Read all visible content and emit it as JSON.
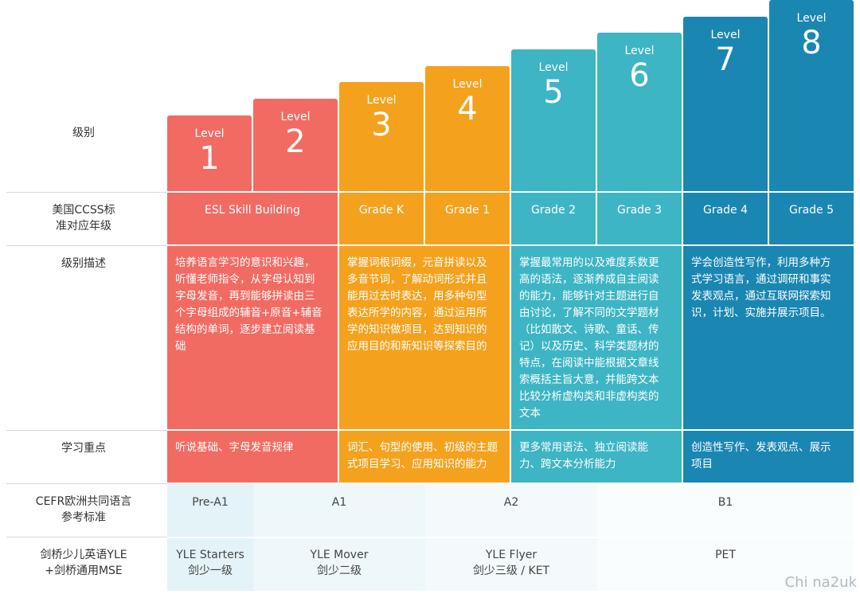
{
  "row_labels": {
    "level": "级别",
    "ccss": [
      "美国CCSS标",
      "准对应年级"
    ],
    "desc": "级别描述",
    "focus": "学习重点",
    "cefr": [
      "CEFR欧洲共同语言",
      "参考标准"
    ],
    "yle": [
      "剑桥少儿英语YLE",
      "+剑桥通用MSE"
    ]
  },
  "levels": [
    {
      "word": "Level",
      "num": "1"
    },
    {
      "word": "Level",
      "num": "2"
    },
    {
      "word": "Level",
      "num": "3"
    },
    {
      "word": "Level",
      "num": "4"
    },
    {
      "word": "Level",
      "num": "5"
    },
    {
      "word": "Level",
      "num": "6"
    },
    {
      "word": "Level",
      "num": "7"
    },
    {
      "word": "Level",
      "num": "8"
    }
  ],
  "grades": [
    "ESL Skill Building",
    "Grade K",
    "Grade 1",
    "Grade 2",
    "Grade 3",
    "Grade 4",
    "Grade 5"
  ],
  "descriptions": [
    [
      "培养语言学习的意识和兴趣，",
      "听懂老师指令，从字母认知到",
      "字母发音，再到能够拼读由三",
      "个字母组成的辅音+原音+辅音",
      "结构的单词，逐步建立阅读基",
      "础"
    ],
    [
      "掌握词根词缀，元音拼读以及",
      "多音节词，了解动词形式并且",
      "能用过去时表达，用多种句型",
      "表达所学的内容，通过运用所",
      "学的知识做项目，达到知识的",
      "应用目的和新知识等探索目的"
    ],
    [
      "掌握最常用的以及难度系数更",
      "高的语法，逐渐养成自主阅读",
      "的能力，能够针对主题进行自",
      "由讨论，了解不同的文学题材",
      "（比如散文、诗歌、童话、传",
      "记）以及历史、科学类题材的",
      "特点，在阅读中能根据文章线",
      "索概括主旨大意，并能跨文本",
      "比较分析虚构类和非虚构类的",
      "文本"
    ],
    [
      "学会创造性写作，利用多种方",
      "式学习语言，通过调研和事实",
      "发表观点，通过互联网探索知",
      "识，计划、实施并展示项目。"
    ]
  ],
  "focus": [
    [
      "听说基础、字母发音规律"
    ],
    [
      "词汇、句型的使用、初级的主题",
      "式项目学习、应用知识的能力"
    ],
    [
      "更多常用语法、独立阅读能",
      "力、跨文本分析能力"
    ],
    [
      "创造性写作、发表观点、展示",
      "项目"
    ]
  ],
  "cefr": [
    "Pre-A1",
    "A1",
    "A2",
    "B1"
  ],
  "yle": [
    [
      "YLE Starters",
      "剑少一级"
    ],
    [
      "YLE Mover",
      "剑少二级"
    ],
    [
      "YLE Flyer",
      "剑少三级  /  KET"
    ],
    [
      "PET"
    ]
  ],
  "watermark": "Chi na2uk",
  "colors": {
    "red": "#f26b63",
    "orange": "#f4a21e",
    "teal": "#3db5c4",
    "blue": "#1a86b2",
    "light_band": "#e6f4f7"
  }
}
